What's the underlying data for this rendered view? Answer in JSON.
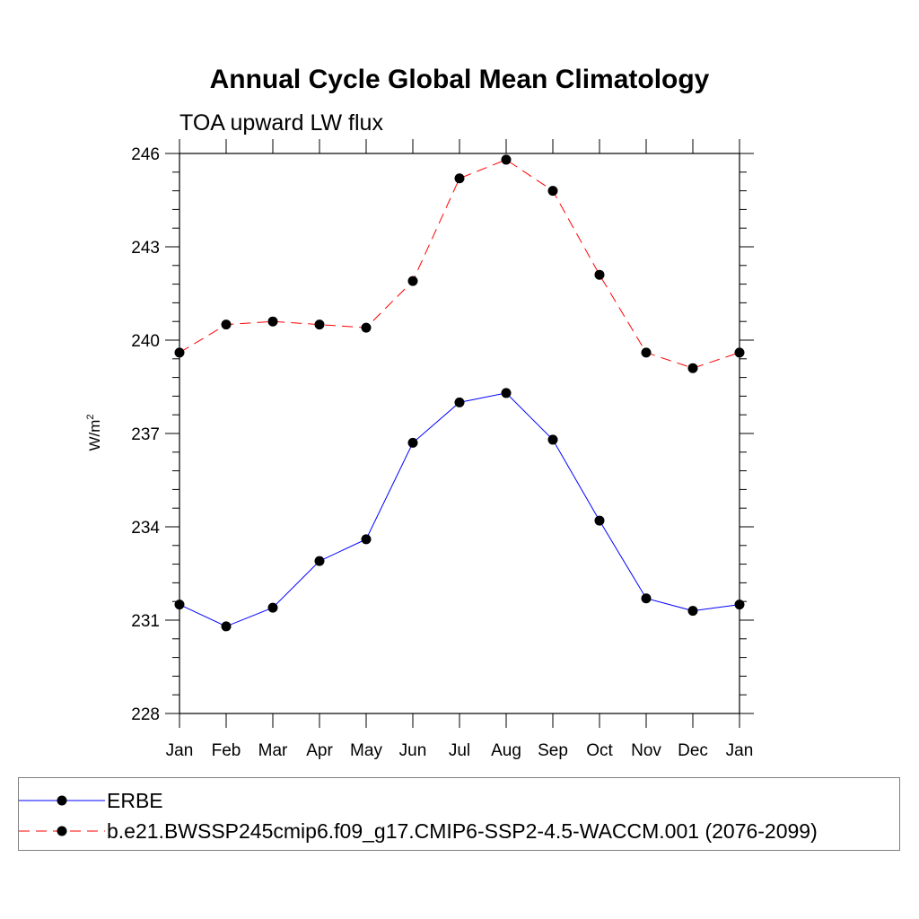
{
  "chart_data": {
    "type": "line",
    "title": "Annual Cycle Global Mean Climatology",
    "subtitle": "TOA upward LW flux",
    "ylabel": "W/m",
    "ylabel_superscript": "2",
    "categories": [
      "Jan",
      "Feb",
      "Mar",
      "Apr",
      "May",
      "Jun",
      "Jul",
      "Aug",
      "Sep",
      "Oct",
      "Nov",
      "Dec",
      "Jan"
    ],
    "ylim": [
      228,
      246
    ],
    "yticks": [
      228,
      231,
      234,
      237,
      240,
      243,
      246
    ],
    "grid": false,
    "legend_position": "bottom",
    "series": [
      {
        "name": "ERBE",
        "color": "#0000ff",
        "line_style": "solid",
        "marker": "filled-circle",
        "values": [
          231.5,
          230.8,
          231.4,
          232.9,
          233.6,
          236.7,
          238.0,
          238.3,
          236.8,
          234.2,
          231.7,
          231.3,
          231.5
        ]
      },
      {
        "name": "b.e21.BWSSP245cmip6.f09_g17.CMIP6-SSP2-4.5-WACCM.001 (2076-2099)",
        "color": "#ff0000",
        "line_style": "dashed",
        "marker": "filled-circle",
        "values": [
          239.6,
          240.5,
          240.6,
          240.5,
          240.4,
          241.9,
          245.2,
          245.8,
          244.8,
          242.1,
          239.6,
          239.1,
          239.6
        ]
      }
    ]
  }
}
